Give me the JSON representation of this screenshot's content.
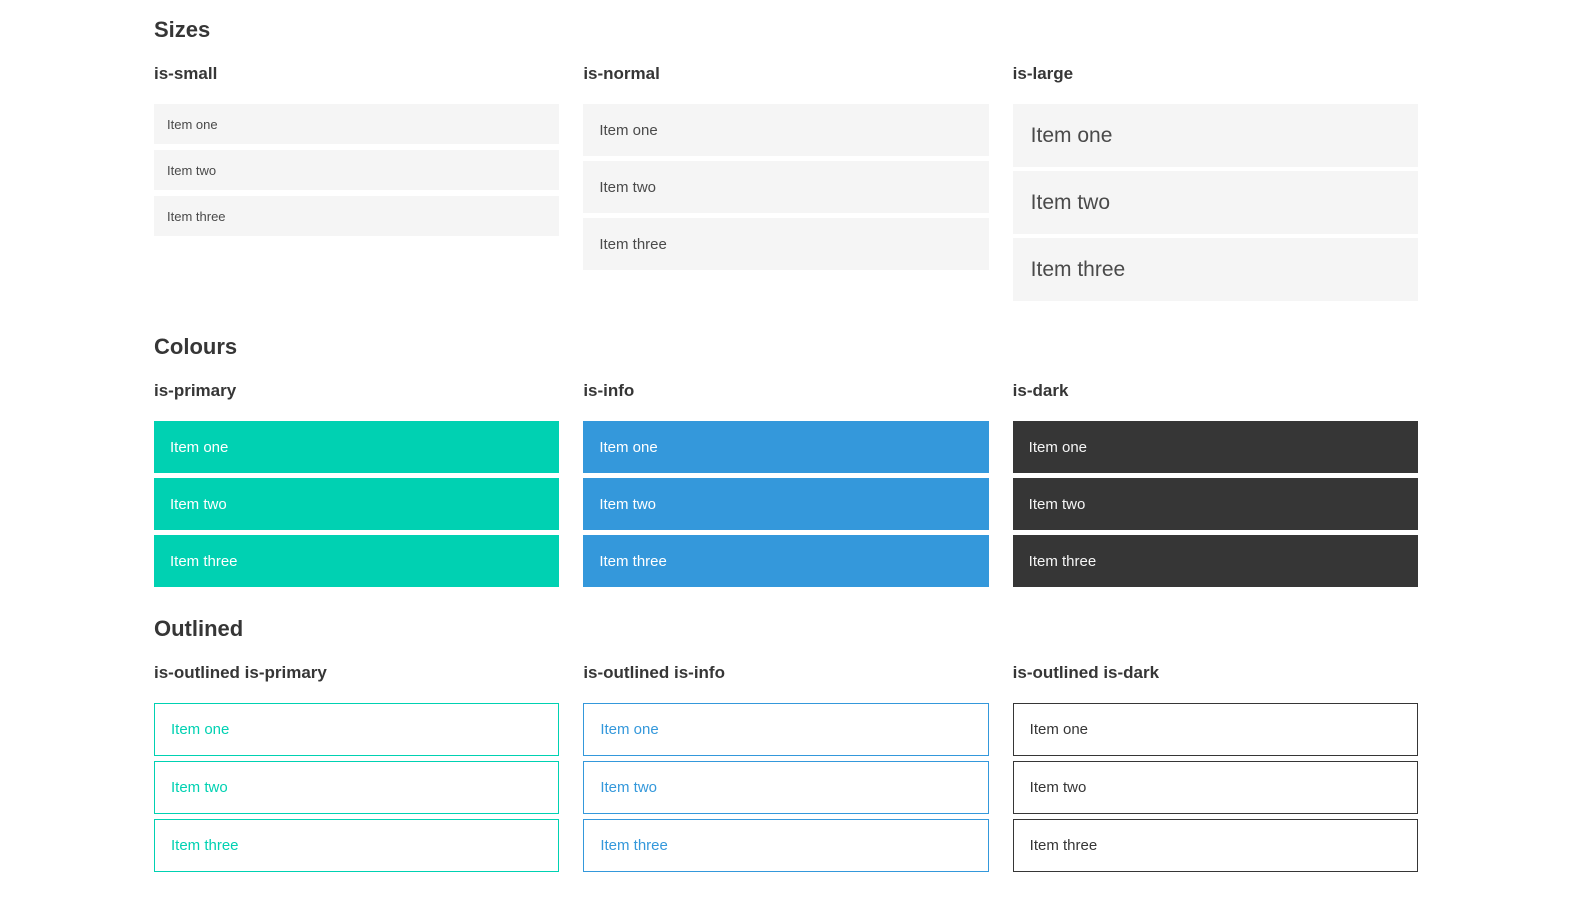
{
  "sections": [
    {
      "title": "Sizes",
      "groups": [
        {
          "label": "is-small",
          "items": [
            "Item one",
            "Item two",
            "Item three"
          ]
        },
        {
          "label": "is-normal",
          "items": [
            "Item one",
            "Item two",
            "Item three"
          ]
        },
        {
          "label": "is-large",
          "items": [
            "Item one",
            "Item two",
            "Item three"
          ]
        }
      ]
    },
    {
      "title": "Colours",
      "groups": [
        {
          "label": "is-primary",
          "items": [
            "Item one",
            "Item two",
            "Item three"
          ]
        },
        {
          "label": "is-info",
          "items": [
            "Item one",
            "Item two",
            "Item three"
          ]
        },
        {
          "label": "is-dark",
          "items": [
            "Item one",
            "Item two",
            "Item three"
          ]
        }
      ]
    },
    {
      "title": "Outlined",
      "groups": [
        {
          "label": "is-outlined is-primary",
          "items": [
            "Item one",
            "Item two",
            "Item three"
          ]
        },
        {
          "label": "is-outlined is-info",
          "items": [
            "Item one",
            "Item two",
            "Item three"
          ]
        },
        {
          "label": "is-outlined is-dark",
          "items": [
            "Item one",
            "Item two",
            "Item three"
          ]
        }
      ]
    }
  ],
  "colors": {
    "primary": "#00d1b2",
    "info": "#3498db",
    "dark": "#363636",
    "item-bg": "#f5f5f5",
    "item-text": "#4a4a4a",
    "heading": "#363636",
    "on-color-text": "#ffffff",
    "dark-item-text": "#f5f5f5",
    "page-bg": "#ffffff"
  }
}
